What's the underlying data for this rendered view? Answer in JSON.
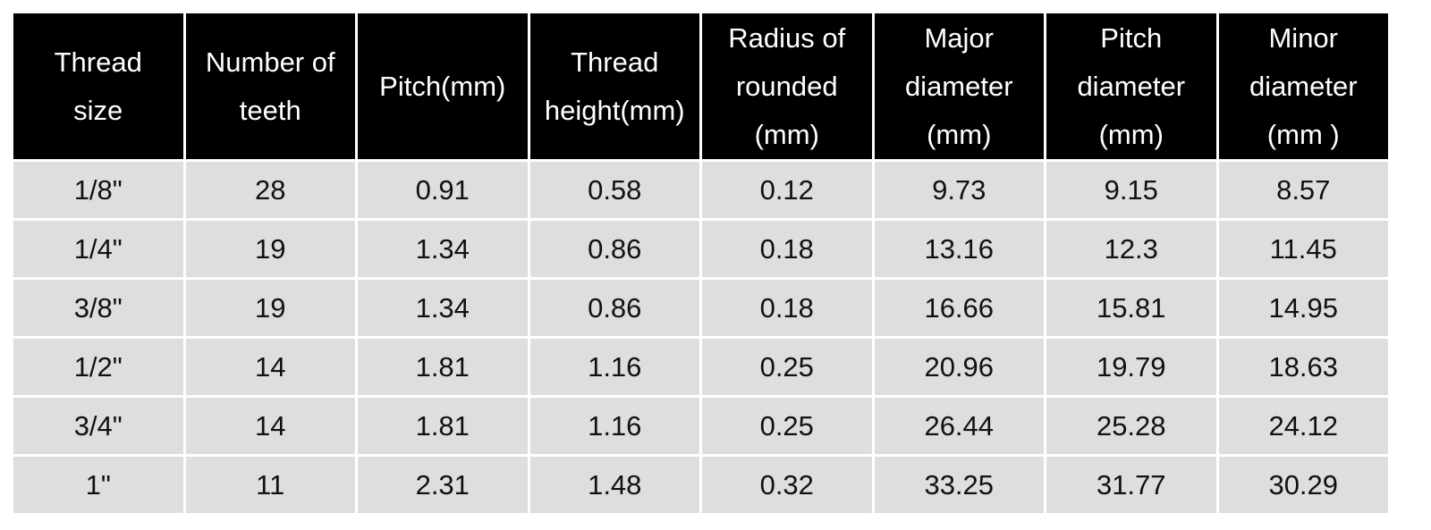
{
  "table": {
    "header": [
      [
        "Thread",
        "size"
      ],
      [
        "Number of",
        "teeth"
      ],
      [
        "Pitch(mm)"
      ],
      [
        "Thread",
        "height(mm)"
      ],
      [
        "Radius of",
        "rounded",
        "(mm)"
      ],
      [
        "Major",
        "diameter",
        "(mm)"
      ],
      [
        "Pitch",
        "diameter",
        "(mm)"
      ],
      [
        "Minor",
        "diameter",
        "(mm )"
      ]
    ],
    "rows": [
      [
        "1/8\"",
        "28",
        "0.91",
        "0.58",
        "0.12",
        "9.73",
        "9.15",
        "8.57"
      ],
      [
        "1/4\"",
        "19",
        "1.34",
        "0.86",
        "0.18",
        "13.16",
        "12.3",
        "11.45"
      ],
      [
        "3/8\"",
        "19",
        "1.34",
        "0.86",
        "0.18",
        "16.66",
        "15.81",
        "14.95"
      ],
      [
        "1/2\"",
        "14",
        "1.81",
        "1.16",
        "0.25",
        "20.96",
        "19.79",
        "18.63"
      ],
      [
        "3/4\"",
        "14",
        "1.81",
        "1.16",
        "0.25",
        "26.44",
        "25.28",
        "24.12"
      ],
      [
        "1\"",
        "11",
        "2.31",
        "1.48",
        "0.32",
        "33.25",
        "31.77",
        "30.29"
      ]
    ]
  }
}
